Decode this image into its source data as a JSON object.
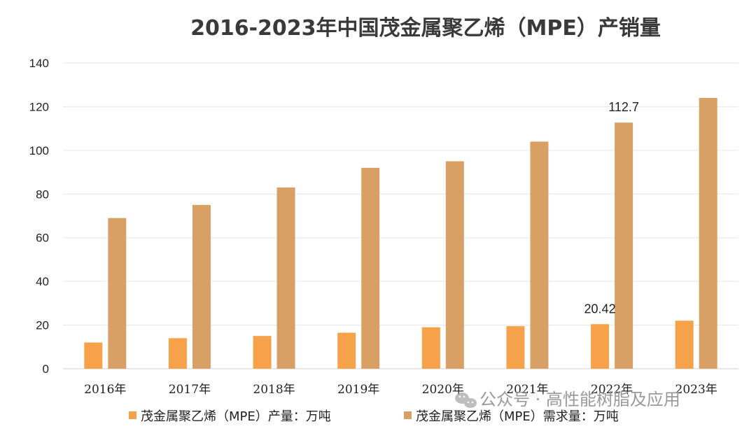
{
  "chart_data": {
    "type": "bar",
    "title": "2016-2023年中国茂金属聚乙烯（MPE）产销量",
    "categories": [
      "2016年",
      "2017年",
      "2018年",
      "2019年",
      "2020年",
      "2021年",
      "2022年",
      "2023年"
    ],
    "series": [
      {
        "name": "茂金属聚乙烯（MPE）产量：万吨",
        "color": "#f5a24a",
        "values": [
          12,
          14,
          15,
          16.5,
          19,
          19.5,
          20.42,
          22
        ]
      },
      {
        "name": "茂金属聚乙烯（MPE）需求量：万吨",
        "color": "#d9a066",
        "values": [
          69,
          75,
          83,
          92,
          95,
          104,
          112.7,
          124
        ]
      }
    ],
    "data_labels": [
      {
        "series": 0,
        "index": 6,
        "text": "20.42"
      },
      {
        "series": 1,
        "index": 6,
        "text": "112.7"
      }
    ],
    "yticks": [
      "0",
      "20",
      "40",
      "60",
      "80",
      "100",
      "120",
      "140"
    ],
    "ylim": [
      0,
      140
    ],
    "grid": true,
    "legend_position": "bottom"
  },
  "watermark": {
    "icon": "wechat-icon",
    "text": "公众号 · 高性能树脂及应用"
  }
}
